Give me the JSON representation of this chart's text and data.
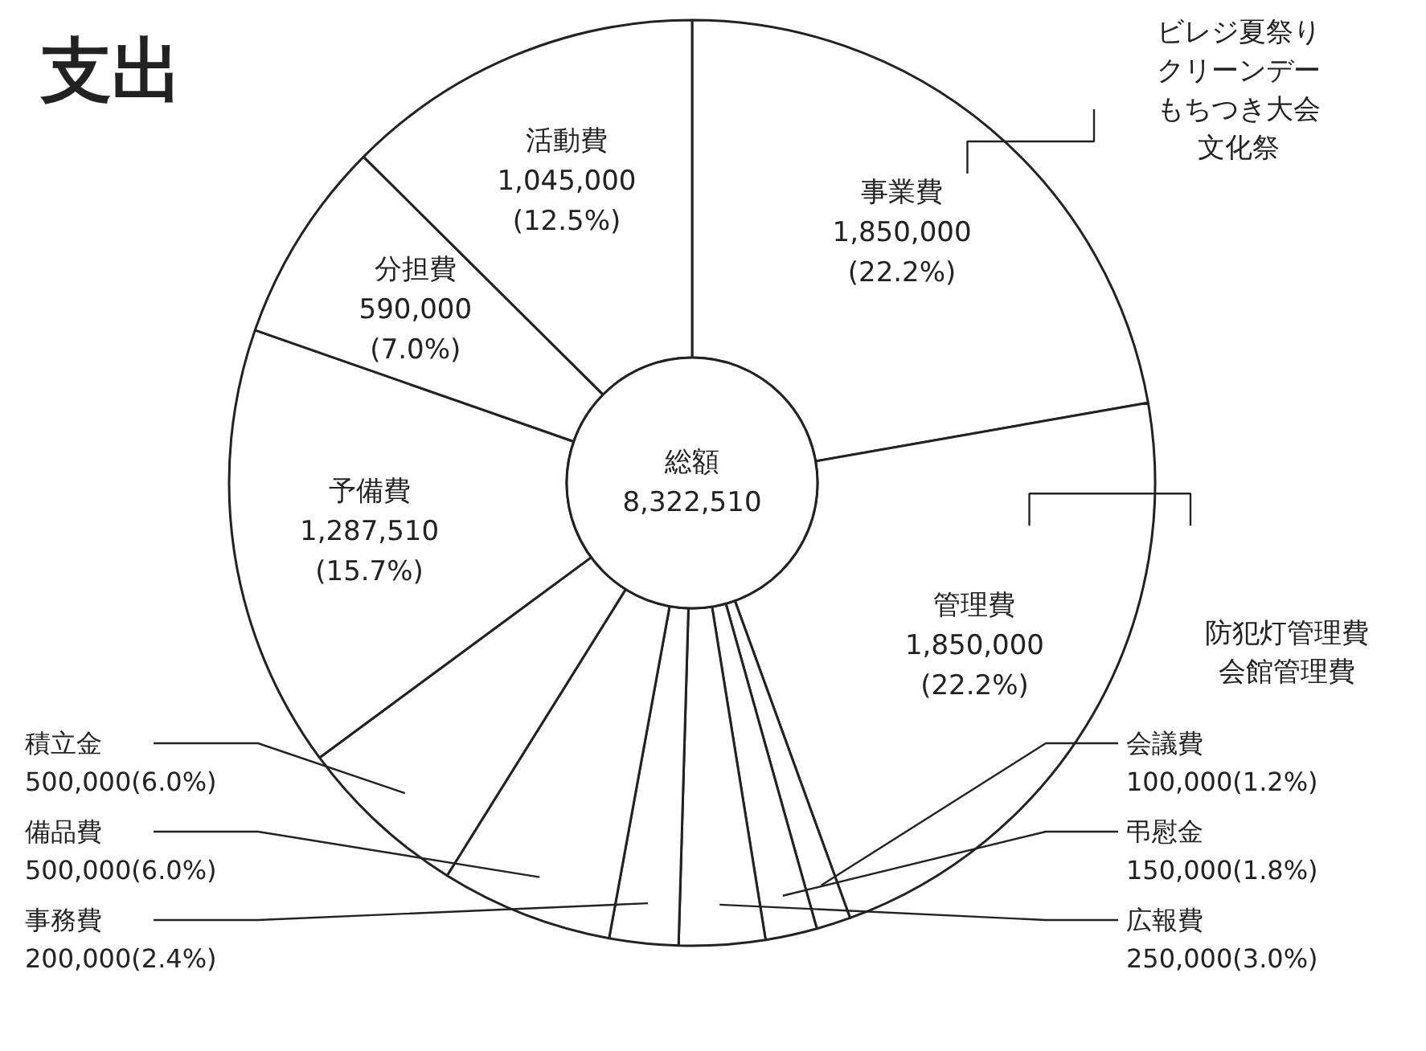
{
  "chart_data": {
    "type": "donut",
    "title": "支出",
    "categories": [
      "事業費",
      "管理費",
      "会議費",
      "弔慰金",
      "広報費",
      "事務費",
      "備品費",
      "積立金",
      "予備費",
      "分担費",
      "活動費"
    ],
    "values": [
      1850000,
      1850000,
      100000,
      150000,
      250000,
      200000,
      500000,
      500000,
      1287510,
      590000,
      1045000
    ],
    "value_labels": [
      "1,850,000\n(22.2%)",
      "1,850,000\n(22.2%)",
      "100,000(1.2%)",
      "150,000(1.8%)",
      "250,000(3.0%)",
      "200,000(2.4%)",
      "500,000(6.0%)",
      "500,000(6.0%)",
      "1,287,510\n(15.7%)",
      "590,000\n(7.0%)",
      "1,045,000\n(12.5%)"
    ],
    "colors": [
      "#ffffff",
      "#ffffff",
      "#ffffff",
      "#ffffff",
      "#ffffff",
      "#ffffff",
      "#ffffff",
      "#ffffff",
      "#ffffff",
      "#ffffff",
      "#ffffff"
    ],
    "annotations": [
      {
        "text": "ビレジ夏祭り",
        "x": "事業費"
      },
      {
        "text": "クリーンデー",
        "x": "事業費"
      },
      {
        "text": "もちつき大会",
        "x": "事業費"
      },
      {
        "text": "文化祭",
        "x": "事業費"
      },
      {
        "text": "防犯灯管理費",
        "x": "管理費"
      },
      {
        "text": "会館管理費",
        "x": "管理費"
      },
      "総額\n8,322,510"
    ]
  }
}
